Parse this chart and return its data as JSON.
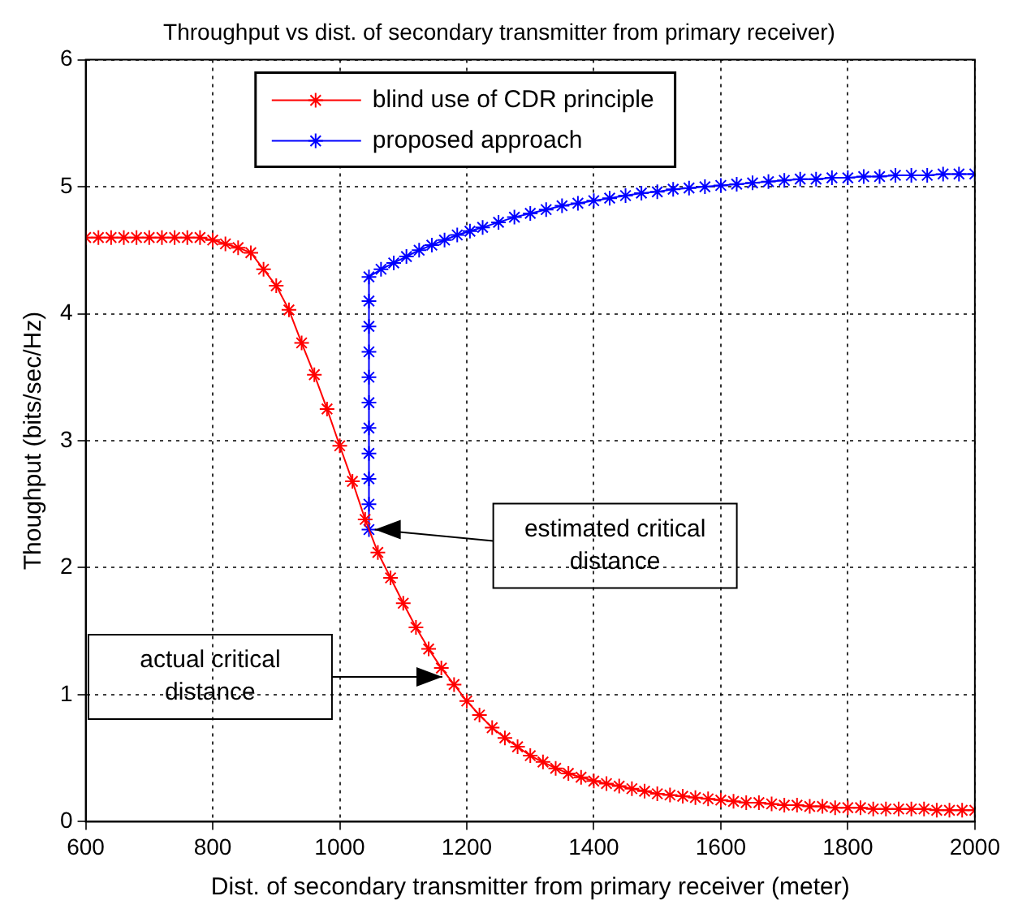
{
  "chart_data": {
    "type": "line",
    "title": "Throughput vs dist. of secondary transmitter from primary receiver)",
    "xlabel": "Dist. of secondary transmitter from primary receiver (meter)",
    "ylabel": "Thoughput (bits/sec/Hz)",
    "xlim": [
      600,
      2000
    ],
    "xticks": [
      600,
      800,
      1000,
      1200,
      1400,
      1600,
      1800,
      2000
    ],
    "ylim": [
      0,
      6
    ],
    "yticks": [
      0,
      1,
      2,
      3,
      4,
      5,
      6
    ],
    "grid": true,
    "legend": "top",
    "marker": "cross",
    "line_style": "solid",
    "series": [
      {
        "name": "blind use of CDR principle",
        "color": "#ff0000",
        "x": [
          600,
          620,
          640,
          660,
          680,
          700,
          720,
          740,
          760,
          780,
          800,
          820,
          840,
          860,
          880,
          900,
          920,
          940,
          960,
          980,
          1000,
          1020,
          1040,
          1060,
          1080,
          1100,
          1120,
          1140,
          1160,
          1180,
          1200,
          1220,
          1240,
          1260,
          1280,
          1300,
          1320,
          1340,
          1360,
          1380,
          1400,
          1420,
          1440,
          1460,
          1480,
          1500,
          1520,
          1540,
          1560,
          1580,
          1600,
          1620,
          1640,
          1660,
          1680,
          1700,
          1720,
          1740,
          1760,
          1780,
          1800,
          1820,
          1840,
          1860,
          1880,
          1900,
          1920,
          1940,
          1960,
          1980,
          2000
        ],
        "values": [
          4.6,
          4.6,
          4.6,
          4.6,
          4.6,
          4.6,
          4.6,
          4.6,
          4.6,
          4.6,
          4.58,
          4.55,
          4.52,
          4.48,
          4.35,
          4.22,
          4.03,
          3.77,
          3.52,
          3.25,
          2.96,
          2.68,
          2.38,
          2.12,
          1.92,
          1.72,
          1.53,
          1.36,
          1.21,
          1.08,
          0.95,
          0.84,
          0.74,
          0.66,
          0.59,
          0.52,
          0.47,
          0.42,
          0.38,
          0.35,
          0.32,
          0.3,
          0.28,
          0.26,
          0.24,
          0.22,
          0.21,
          0.2,
          0.19,
          0.18,
          0.17,
          0.16,
          0.15,
          0.15,
          0.14,
          0.13,
          0.13,
          0.12,
          0.12,
          0.11,
          0.11,
          0.11,
          0.1,
          0.1,
          0.1,
          0.1,
          0.1,
          0.09,
          0.09,
          0.09,
          0.09
        ]
      },
      {
        "name": "proposed approach",
        "color": "#0000ff",
        "x": [
          1046,
          1046,
          1046,
          1046,
          1046,
          1046,
          1046,
          1046,
          1046,
          1046,
          1046,
          1065,
          1085,
          1105,
          1125,
          1145,
          1165,
          1185,
          1205,
          1225,
          1250,
          1275,
          1300,
          1325,
          1350,
          1375,
          1400,
          1425,
          1450,
          1475,
          1500,
          1525,
          1550,
          1575,
          1600,
          1625,
          1650,
          1675,
          1700,
          1725,
          1750,
          1775,
          1800,
          1825,
          1850,
          1875,
          1900,
          1925,
          1950,
          1975,
          2000
        ],
        "values": [
          2.3,
          2.5,
          2.7,
          2.9,
          3.1,
          3.3,
          3.5,
          3.7,
          3.9,
          4.1,
          4.29,
          4.35,
          4.4,
          4.45,
          4.5,
          4.54,
          4.58,
          4.62,
          4.65,
          4.68,
          4.72,
          4.76,
          4.79,
          4.82,
          4.85,
          4.87,
          4.89,
          4.91,
          4.93,
          4.95,
          4.96,
          4.98,
          4.99,
          5.0,
          5.01,
          5.02,
          5.03,
          5.04,
          5.05,
          5.06,
          5.06,
          5.07,
          5.07,
          5.08,
          5.08,
          5.09,
          5.09,
          5.09,
          5.1,
          5.1,
          5.1
        ]
      }
    ],
    "annotations": [
      {
        "text": "estimated critical distance",
        "x": 1050,
        "y": 2.3
      },
      "actual critical distance"
    ]
  }
}
